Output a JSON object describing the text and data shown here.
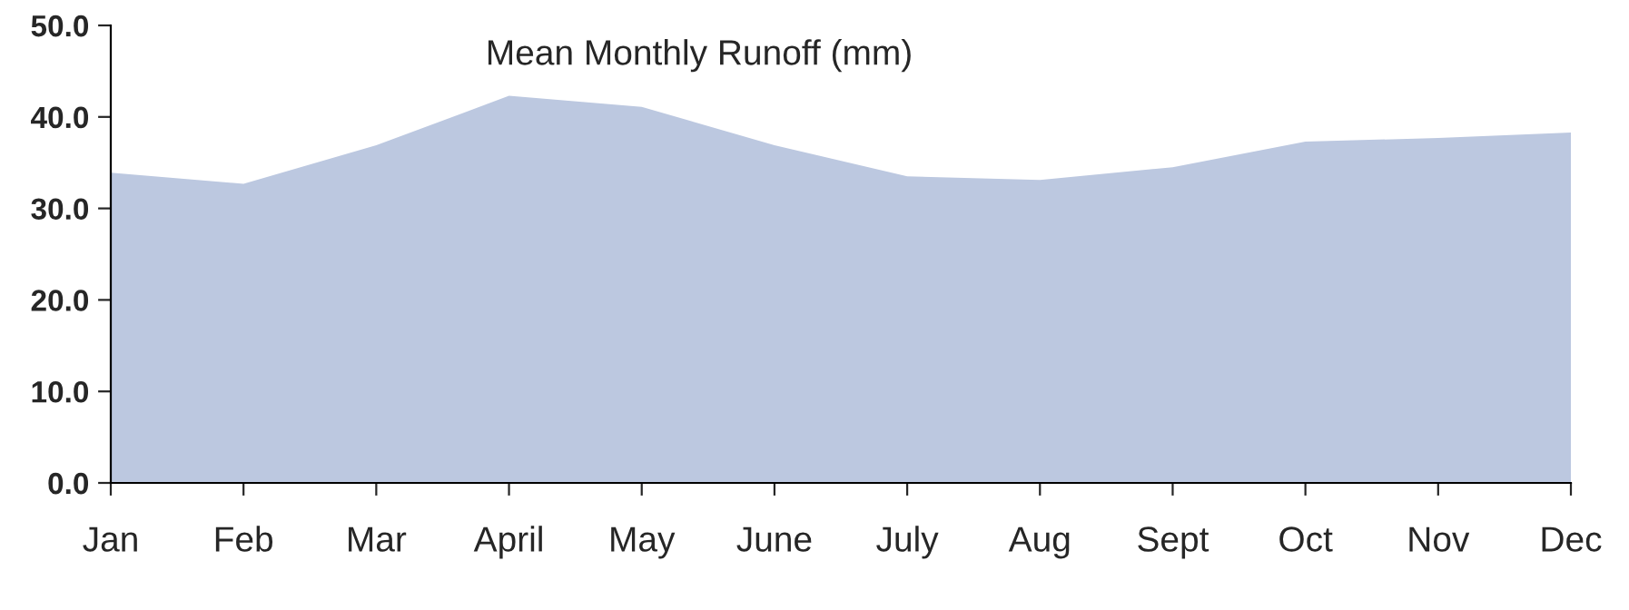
{
  "chart_data": {
    "type": "area",
    "title": "Mean Monthly Runoff (mm)",
    "categories": [
      "Jan",
      "Feb",
      "Mar",
      "April",
      "May",
      "June",
      "July",
      "Aug",
      "Sept",
      "Oct",
      "Nov",
      "Dec"
    ],
    "series": [
      {
        "color": "#bcc8e0",
        "values": [
          33.9,
          32.7,
          36.9,
          42.3,
          41.1,
          36.9,
          33.5,
          33.1,
          34.5,
          37.3,
          37.7,
          38.3
        ]
      }
    ],
    "ylim": [
      0,
      50
    ],
    "yticks": [
      {
        "value": 0,
        "label": "0.0"
      },
      {
        "value": 10,
        "label": "10.0"
      },
      {
        "value": 20,
        "label": "20.0"
      },
      {
        "value": 30,
        "label": "30.0"
      },
      {
        "value": 40,
        "label": "40.0"
      },
      {
        "value": 50,
        "label": "50.0"
      }
    ],
    "grid": false
  }
}
